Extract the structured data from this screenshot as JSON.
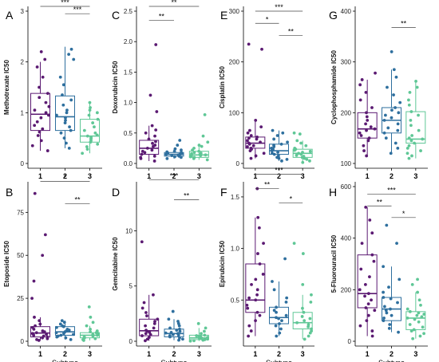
{
  "figure": {
    "subtype_colors": [
      "#5b1a72",
      "#2e6f9e",
      "#5fc796"
    ],
    "x_categories": [
      "1",
      "2",
      "3"
    ],
    "x_title": "Subtype"
  },
  "chart_data": [
    {
      "letter": "A",
      "type": "boxplot",
      "ylabel": "Methotrexate IC50",
      "ylim": [
        0,
        3
      ],
      "yticks": [
        0,
        1,
        2,
        3
      ],
      "categories": [
        "1",
        "2",
        "3"
      ],
      "boxes": [
        {
          "min": 0.25,
          "q1": 0.65,
          "median": 0.97,
          "q3": 1.38,
          "max": 2.0
        },
        {
          "min": 0.3,
          "q1": 0.65,
          "median": 0.92,
          "q3": 1.33,
          "max": 2.3
        },
        {
          "min": 0.2,
          "q1": 0.42,
          "median": 0.54,
          "q3": 0.87,
          "max": 1.2
        }
      ],
      "points": [
        [
          0.25,
          0.35,
          0.45,
          0.55,
          0.62,
          0.68,
          0.75,
          0.82,
          0.9,
          0.95,
          1.0,
          1.05,
          1.12,
          1.2,
          1.3,
          1.38,
          1.5,
          1.7,
          1.9,
          2.05,
          2.2
        ],
        [
          0.3,
          0.4,
          0.5,
          0.6,
          0.65,
          0.72,
          0.8,
          0.85,
          0.9,
          0.95,
          1.0,
          1.05,
          1.15,
          1.25,
          1.35,
          1.55,
          1.7,
          2.05,
          2.15,
          2.25
        ],
        [
          0.2,
          0.28,
          0.33,
          0.38,
          0.42,
          0.45,
          0.48,
          0.5,
          0.52,
          0.54,
          0.56,
          0.6,
          0.65,
          0.72,
          0.8,
          0.87,
          0.95,
          1.0,
          1.05,
          1.1,
          1.2
        ]
      ],
      "signif": [
        {
          "from": "1",
          "to": "3",
          "label": "***",
          "y": 3.14
        },
        {
          "from": "2",
          "to": "3",
          "label": "***",
          "y": 2.95
        }
      ],
      "show_xlabel": false
    },
    {
      "letter": "B",
      "type": "boxplot",
      "ylabel": "Etoposide IC50",
      "ylim": [
        0,
        90
      ],
      "yticks": [
        0,
        25,
        50,
        75
      ],
      "categories": [
        "1",
        "2",
        "3"
      ],
      "boxes": [
        {
          "min": 0.5,
          "q1": 2.5,
          "median": 4.8,
          "q3": 8.5,
          "max": 14
        },
        {
          "min": 1,
          "q1": 3.5,
          "median": 5.5,
          "q3": 8.5,
          "max": 12
        },
        {
          "min": 0.5,
          "q1": 2,
          "median": 3.5,
          "q3": 5,
          "max": 9
        }
      ],
      "points": [
        [
          0.5,
          1,
          1.5,
          2,
          2.5,
          3,
          3.5,
          4,
          4.5,
          5,
          5.5,
          6,
          7,
          8,
          9,
          10,
          12,
          14,
          25,
          35,
          50,
          62,
          86
        ],
        [
          1,
          2,
          2.5,
          3,
          3.5,
          4,
          4.5,
          5,
          5.5,
          6,
          6.5,
          7,
          8,
          8.5,
          9,
          10,
          11,
          12
        ],
        [
          0.5,
          1,
          1.5,
          2,
          2.5,
          3,
          3.5,
          4,
          4.5,
          5,
          5.5,
          6,
          7,
          9,
          11,
          14,
          20
        ]
      ],
      "signif": [
        {
          "from": "1",
          "to": "3",
          "label": "*",
          "y": 93
        },
        {
          "from": "2",
          "to": "3",
          "label": "**",
          "y": 80
        }
      ],
      "show_xlabel": true
    },
    {
      "letter": "C",
      "type": "boxplot",
      "ylabel": "Doxorubicin IC50",
      "ylim": [
        0,
        2.5
      ],
      "yticks": [
        0.0,
        0.5,
        1.0,
        1.5,
        2.0,
        2.5
      ],
      "categories": [
        "1",
        "2",
        "3"
      ],
      "boxes": [
        {
          "min": 0.04,
          "q1": 0.15,
          "median": 0.25,
          "q3": 0.38,
          "max": 0.62
        },
        {
          "min": 0.08,
          "q1": 0.12,
          "median": 0.15,
          "q3": 0.18,
          "max": 0.24
        },
        {
          "min": 0.06,
          "q1": 0.1,
          "median": 0.14,
          "q3": 0.2,
          "max": 0.3
        }
      ],
      "points": [
        [
          0.04,
          0.08,
          0.1,
          0.12,
          0.15,
          0.18,
          0.2,
          0.22,
          0.25,
          0.28,
          0.3,
          0.33,
          0.36,
          0.4,
          0.45,
          0.5,
          0.55,
          0.62,
          0.85,
          1.12,
          1.95
        ],
        [
          0.08,
          0.1,
          0.11,
          0.12,
          0.13,
          0.14,
          0.15,
          0.15,
          0.16,
          0.17,
          0.18,
          0.19,
          0.2,
          0.22,
          0.24,
          0.3,
          0.38
        ],
        [
          0.06,
          0.08,
          0.1,
          0.11,
          0.12,
          0.13,
          0.14,
          0.15,
          0.16,
          0.17,
          0.18,
          0.2,
          0.22,
          0.25,
          0.28,
          0.3,
          0.35,
          0.45,
          0.8
        ]
      ],
      "signif": [
        {
          "from": "1",
          "to": "3",
          "label": "**",
          "y": 2.58
        },
        {
          "from": "1",
          "to": "2",
          "label": "**",
          "y": 2.35
        }
      ],
      "show_xlabel": false
    },
    {
      "letter": "D",
      "type": "boxplot",
      "ylabel": "Gemcitabine IC50",
      "ylim": [
        0,
        14
      ],
      "yticks": [
        0,
        5,
        10
      ],
      "categories": [
        "1",
        "2",
        "3"
      ],
      "boxes": [
        {
          "min": 0.05,
          "q1": 0.5,
          "median": 0.95,
          "q3": 2.0,
          "max": 4.2
        },
        {
          "min": 0.1,
          "q1": 0.4,
          "median": 0.7,
          "q3": 1.1,
          "max": 2.0
        },
        {
          "min": 0.02,
          "q1": 0.15,
          "median": 0.3,
          "q3": 0.55,
          "max": 1.2
        }
      ],
      "points": [
        [
          0.05,
          0.2,
          0.35,
          0.5,
          0.6,
          0.7,
          0.8,
          0.9,
          1.0,
          1.2,
          1.4,
          1.6,
          1.8,
          2.0,
          2.3,
          2.6,
          3.0,
          3.5,
          4.2,
          9.0
        ],
        [
          0.1,
          0.2,
          0.3,
          0.4,
          0.5,
          0.55,
          0.6,
          0.7,
          0.75,
          0.8,
          0.9,
          1.0,
          1.1,
          1.2,
          1.4,
          1.6,
          1.8,
          2.0,
          2.7
        ],
        [
          0.02,
          0.05,
          0.1,
          0.15,
          0.2,
          0.25,
          0.3,
          0.35,
          0.4,
          0.45,
          0.5,
          0.55,
          0.7,
          0.9,
          1.2,
          1.6
        ]
      ],
      "signif": [
        {
          "from": "1",
          "to": "3",
          "label": "***",
          "y": 14.6
        },
        {
          "from": "2",
          "to": "3",
          "label": "**",
          "y": 12.8
        }
      ],
      "show_xlabel": true
    },
    {
      "letter": "E",
      "type": "boxplot",
      "ylabel": "Cisplatin IC50",
      "ylim": [
        0,
        300
      ],
      "yticks": [
        0,
        100,
        200,
        300
      ],
      "categories": [
        "1",
        "2",
        "3"
      ],
      "boxes": [
        {
          "min": 10,
          "q1": 30,
          "median": 40,
          "q3": 52,
          "max": 85
        },
        {
          "min": 5,
          "q1": 18,
          "median": 25,
          "q3": 38,
          "max": 65
        },
        {
          "min": 2,
          "q1": 12,
          "median": 20,
          "q3": 28,
          "max": 45
        }
      ],
      "points": [
        [
          10,
          15,
          20,
          25,
          28,
          30,
          33,
          35,
          38,
          40,
          42,
          45,
          48,
          50,
          52,
          55,
          60,
          65,
          72,
          85,
          225,
          235
        ],
        [
          5,
          8,
          10,
          12,
          15,
          18,
          20,
          22,
          25,
          28,
          30,
          33,
          36,
          38,
          42,
          48,
          55,
          60,
          65
        ],
        [
          2,
          5,
          8,
          10,
          12,
          14,
          16,
          18,
          20,
          22,
          24,
          26,
          28,
          30,
          35,
          40,
          45,
          58,
          60
        ]
      ],
      "signif": [
        {
          "from": "1",
          "to": "3",
          "label": "***",
          "y": 300
        },
        {
          "from": "1",
          "to": "2",
          "label": "*",
          "y": 276
        },
        {
          "from": "2",
          "to": "3",
          "label": "**",
          "y": 252
        }
      ],
      "show_xlabel": false
    },
    {
      "letter": "F",
      "type": "boxplot",
      "ylabel": "Epirubicin IC50",
      "ylim": [
        0.1,
        1.6
      ],
      "yticks": [
        0.5,
        1.0,
        1.5
      ],
      "categories": [
        "1",
        "2",
        "3"
      ],
      "boxes": [
        {
          "min": 0.15,
          "q1": 0.38,
          "median": 0.5,
          "q3": 0.85,
          "max": 1.3
        },
        {
          "min": 0.15,
          "q1": 0.27,
          "median": 0.33,
          "q3": 0.43,
          "max": 0.68
        },
        {
          "min": 0.12,
          "q1": 0.22,
          "median": 0.28,
          "q3": 0.38,
          "max": 0.55
        }
      ],
      "points": [
        [
          0.15,
          0.2,
          0.25,
          0.3,
          0.35,
          0.38,
          0.42,
          0.45,
          0.5,
          0.52,
          0.55,
          0.6,
          0.65,
          0.7,
          0.75,
          0.85,
          0.95,
          1.05,
          1.2,
          1.3,
          1.58
        ],
        [
          0.15,
          0.18,
          0.22,
          0.25,
          0.27,
          0.3,
          0.32,
          0.33,
          0.35,
          0.38,
          0.4,
          0.43,
          0.48,
          0.52,
          0.6,
          0.68,
          0.9
        ],
        [
          0.12,
          0.15,
          0.18,
          0.2,
          0.22,
          0.24,
          0.26,
          0.28,
          0.3,
          0.32,
          0.34,
          0.38,
          0.42,
          0.48,
          0.55,
          0.65,
          0.95,
          1.05
        ]
      ],
      "signif": [
        {
          "from": "1",
          "to": "3",
          "label": "***",
          "y": 1.72
        },
        {
          "from": "1",
          "to": "2",
          "label": "**",
          "y": 1.58
        },
        {
          "from": "2",
          "to": "3",
          "label": "*",
          "y": 1.44
        }
      ],
      "show_xlabel": true
    },
    {
      "letter": "G",
      "type": "boxplot",
      "ylabel": "Cyclophosphamide IC50",
      "ylim": [
        100,
        400
      ],
      "yticks": [
        100,
        200,
        300,
        400
      ],
      "categories": [
        "1",
        "2",
        "3"
      ],
      "boxes": [
        {
          "min": 115,
          "q1": 150,
          "median": 168,
          "q3": 200,
          "max": 265
        },
        {
          "min": 120,
          "q1": 160,
          "median": 185,
          "q3": 210,
          "max": 285
        },
        {
          "min": 110,
          "q1": 140,
          "median": 148,
          "q3": 202,
          "max": 260
        }
      ],
      "points": [
        [
          115,
          125,
          135,
          145,
          150,
          155,
          160,
          165,
          168,
          172,
          178,
          185,
          192,
          200,
          210,
          225,
          240,
          255,
          265,
          278
        ],
        [
          120,
          130,
          140,
          150,
          160,
          165,
          170,
          178,
          185,
          190,
          195,
          200,
          205,
          210,
          220,
          235,
          250,
          270,
          285,
          320
        ],
        [
          110,
          115,
          120,
          125,
          130,
          135,
          140,
          145,
          148,
          150,
          155,
          165,
          175,
          185,
          195,
          202,
          215,
          225,
          240,
          250,
          262
        ]
      ],
      "signif": [
        {
          "from": "2",
          "to": "3",
          "label": "**",
          "y": 368
        }
      ],
      "show_xlabel": false
    },
    {
      "letter": "H",
      "type": "boxplot",
      "ylabel": "5-Fluorouracil IC50",
      "ylim": [
        0,
        600
      ],
      "yticks": [
        0,
        200,
        400,
        600
      ],
      "categories": [
        "1",
        "2",
        "3"
      ],
      "boxes": [
        {
          "min": 20,
          "q1": 130,
          "median": 185,
          "q3": 335,
          "max": 520
        },
        {
          "min": 35,
          "q1": 80,
          "median": 125,
          "q3": 170,
          "max": 290
        },
        {
          "min": 10,
          "q1": 45,
          "median": 90,
          "q3": 115,
          "max": 190
        }
      ],
      "points": [
        [
          20,
          40,
          60,
          80,
          100,
          120,
          130,
          145,
          160,
          175,
          185,
          200,
          220,
          250,
          280,
          310,
          335,
          380,
          420,
          470,
          520
        ],
        [
          35,
          50,
          65,
          80,
          90,
          100,
          110,
          120,
          125,
          135,
          150,
          165,
          170,
          190,
          210,
          240,
          290,
          380,
          450
        ],
        [
          10,
          20,
          30,
          40,
          45,
          55,
          65,
          75,
          85,
          90,
          95,
          100,
          105,
          110,
          115,
          125,
          140,
          160,
          190,
          220,
          240
        ]
      ],
      "signif": [
        {
          "from": "1",
          "to": "3",
          "label": "***",
          "y": 570
        },
        {
          "from": "1",
          "to": "2",
          "label": "**",
          "y": 525
        },
        {
          "from": "2",
          "to": "3",
          "label": "*",
          "y": 480
        }
      ],
      "show_xlabel": true
    }
  ]
}
